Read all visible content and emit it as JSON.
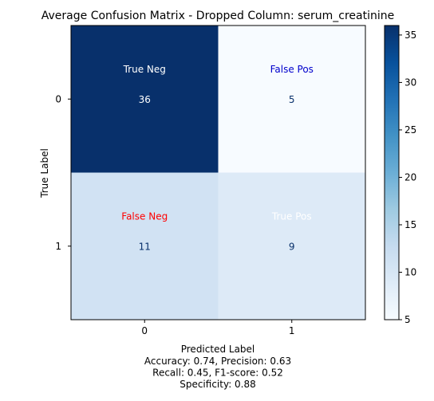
{
  "chart_data": {
    "type": "heatmap",
    "title": "Average Confusion Matrix - Dropped Column: serum_creatinine",
    "xlabel": "Predicted Label",
    "ylabel": "True Label",
    "x_categories": [
      "0",
      "1"
    ],
    "y_categories": [
      "0",
      "1"
    ],
    "values": [
      [
        36,
        5
      ],
      [
        11,
        9
      ]
    ],
    "cell_labels": [
      [
        "True Neg",
        "False Pos"
      ],
      [
        "False Neg",
        "True Pos"
      ]
    ],
    "cell_label_colors": [
      [
        "#ffffff",
        "#0000cc"
      ],
      [
        "#ff0000",
        "#ffffff"
      ]
    ],
    "colormap": "Blues",
    "colorbar": {
      "min": 5,
      "max": 36,
      "ticks": [
        5,
        10,
        15,
        20,
        25,
        30,
        35
      ]
    },
    "metrics_lines": [
      "Accuracy: 0.74, Precision: 0.63",
      "Recall: 0.45, F1-score: 0.52",
      "Specificity: 0.88"
    ]
  }
}
